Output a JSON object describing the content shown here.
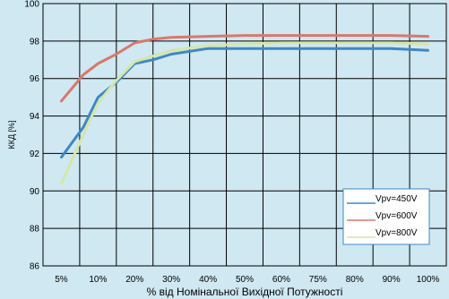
{
  "chart_data": {
    "type": "line",
    "xlabel": "% від Номінальної Вихідної Потужності",
    "ylabel": "ККД [%]",
    "categories": [
      "5%",
      "10%",
      "20%",
      "30%",
      "40%",
      "50%",
      "60%",
      "75%",
      "80%",
      "90%",
      "100%"
    ],
    "x": [
      5,
      10,
      20,
      30,
      40,
      50,
      60,
      75,
      80,
      90,
      100
    ],
    "ylim": [
      86,
      100
    ],
    "yticks": [
      86,
      88,
      90,
      92,
      94,
      96,
      98,
      100
    ],
    "grid": true,
    "legend_position": "bottom-right",
    "series": [
      {
        "name": "Vpv=450V",
        "color": "#3d88c7",
        "x": [
          5,
          8,
          10,
          15,
          20,
          25,
          30,
          40,
          50,
          60,
          75,
          80,
          90,
          100
        ],
        "values": [
          91.8,
          93.4,
          95.0,
          95.8,
          96.8,
          97.0,
          97.3,
          97.6,
          97.6,
          97.6,
          97.6,
          97.6,
          97.6,
          97.5
        ]
      },
      {
        "name": "Vpv=600V",
        "color": "#d9786b",
        "x": [
          5,
          8,
          10,
          15,
          20,
          25,
          30,
          40,
          50,
          60,
          75,
          80,
          90,
          100
        ],
        "values": [
          94.8,
          96.2,
          96.8,
          97.3,
          97.9,
          98.1,
          98.2,
          98.25,
          98.3,
          98.3,
          98.3,
          98.3,
          98.3,
          98.25
        ]
      },
      {
        "name": "Vpv=800V",
        "color": "#d6e6a6",
        "x": [
          5,
          8,
          10,
          15,
          20,
          25,
          30,
          40,
          50,
          60,
          75,
          80,
          90,
          100
        ],
        "values": [
          90.4,
          93.0,
          94.7,
          95.9,
          96.9,
          97.2,
          97.5,
          97.75,
          97.85,
          97.9,
          97.9,
          97.9,
          97.9,
          97.85
        ]
      }
    ]
  }
}
